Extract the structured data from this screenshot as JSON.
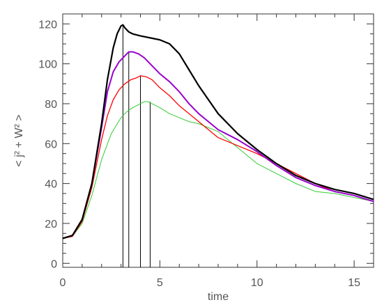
{
  "chart_data": {
    "type": "line",
    "title": "",
    "xlabel": "time",
    "ylabel": "< j² + W² >",
    "xlim": [
      0,
      16
    ],
    "ylim": [
      -2,
      125
    ],
    "grid": false,
    "legend": "none",
    "xticks": [
      0,
      5,
      10,
      15
    ],
    "xtick_labels": [
      "0",
      "5",
      "10",
      "15"
    ],
    "yticks": [
      0,
      20,
      40,
      60,
      80,
      100,
      120
    ],
    "ytick_labels": [
      "0",
      "20",
      "40",
      "60",
      "80",
      "100",
      "120"
    ],
    "series": [
      {
        "color": "#000000",
        "x": [
          0,
          0.5,
          1.0,
          1.5,
          2.0,
          2.3,
          2.6,
          2.8,
          3.0,
          3.1,
          3.2,
          3.4,
          3.6,
          4.0,
          4.5,
          5.0,
          5.5,
          6.0,
          6.5,
          7.0,
          7.5,
          8.0,
          9.0,
          10.0,
          11.0,
          12.0,
          13.0,
          14.0,
          15.0,
          16.0
        ],
        "y": [
          12.5,
          14,
          22,
          40,
          70,
          92,
          108,
          115,
          119,
          119.5,
          118,
          116,
          115,
          114,
          113,
          112,
          110,
          105,
          97,
          89,
          82,
          75,
          65,
          57,
          50,
          44,
          40,
          37,
          35,
          32
        ]
      },
      {
        "color": "#9900cc",
        "x": [
          0,
          0.5,
          1.0,
          1.5,
          2.0,
          2.3,
          2.6,
          2.9,
          3.2,
          3.4,
          3.6,
          3.9,
          4.2,
          4.5,
          5.0,
          5.5,
          6.0,
          6.5,
          7.0,
          7.5,
          8.0,
          9.0,
          10.0,
          11.0,
          12.0,
          13.0,
          14.0,
          15.0,
          16.0
        ],
        "y": [
          12.5,
          14,
          22,
          40,
          68,
          86,
          96,
          101,
          104,
          106,
          106,
          105,
          103,
          100,
          95,
          91,
          86,
          80,
          75,
          71,
          67,
          62,
          56,
          49,
          43,
          39,
          36,
          34,
          31
        ]
      },
      {
        "color": "#ff0000",
        "x": [
          0,
          0.5,
          1.0,
          1.5,
          2.0,
          2.3,
          2.6,
          2.9,
          3.2,
          3.5,
          3.8,
          4.0,
          4.3,
          4.6,
          5.0,
          5.5,
          6.0,
          6.5,
          7.0,
          7.5,
          8.0,
          9.0,
          10.0,
          11.0,
          12.0,
          13.0,
          14.0,
          15.0,
          16.0
        ],
        "y": [
          12.5,
          13.5,
          21,
          38,
          62,
          74,
          82,
          87,
          90,
          92,
          93,
          94,
          93.5,
          92,
          88,
          84,
          79,
          75,
          71,
          67,
          63,
          59,
          55,
          50,
          45,
          40,
          36,
          34,
          31
        ]
      },
      {
        "color": "#33cc33",
        "x": [
          0,
          0.5,
          1.0,
          1.5,
          2.0,
          2.5,
          3.0,
          3.3,
          3.6,
          4.0,
          4.2,
          4.4,
          4.6,
          5.0,
          5.5,
          6.0,
          6.5,
          7.0,
          7.5,
          8.0,
          9.0,
          10.0,
          11.0,
          12.0,
          13.0,
          14.0,
          15.0,
          16.0
        ],
        "y": [
          12.5,
          13.5,
          20,
          34,
          52,
          65,
          73,
          76,
          78,
          80,
          81,
          81,
          80,
          78,
          75,
          73,
          71,
          70,
          68,
          66,
          58,
          50,
          45,
          40,
          36,
          35,
          33,
          31
        ]
      }
    ],
    "vertical_markers": [
      {
        "x": 3.1,
        "y_top": 119.5
      },
      {
        "x": 3.4,
        "y_top": 106
      },
      {
        "x": 4.0,
        "y_top": 94
      },
      {
        "x": 4.5,
        "y_top": 81
      }
    ]
  }
}
